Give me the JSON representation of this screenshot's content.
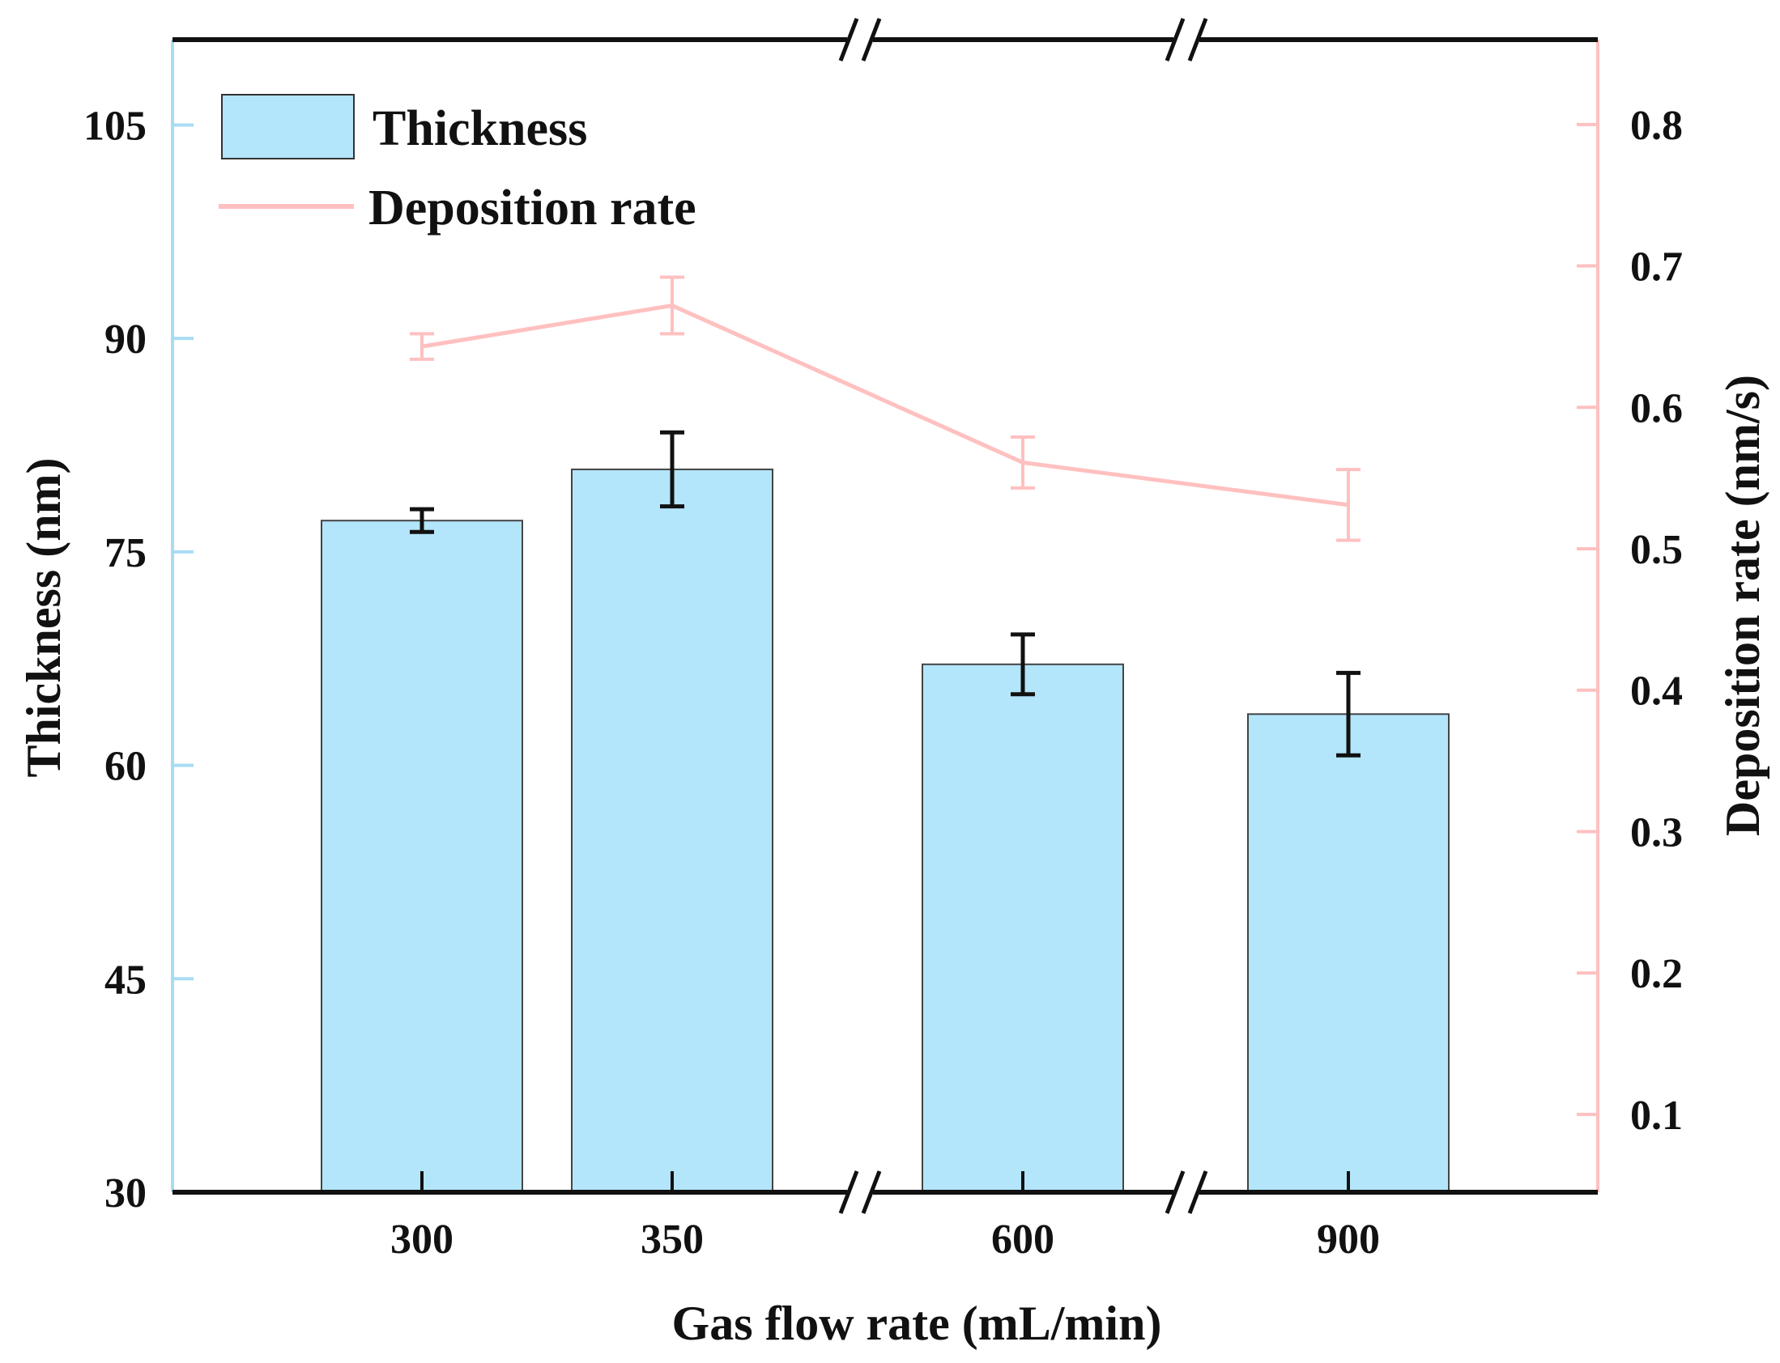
{
  "chart_data": {
    "type": "bar+line",
    "title": "",
    "xlabel": "Gas flow rate (mL/min)",
    "ylabel_left": "Thickness (nm)",
    "ylabel_right": "Deposition rate (nm/s)",
    "categories": [
      "300",
      "350",
      "600",
      "900"
    ],
    "axis_breaks": [
      "between 350 and 600",
      "between 600 and 900"
    ],
    "y_left": {
      "min": 30,
      "max": 111,
      "ticks": [
        30,
        45,
        60,
        75,
        90,
        105
      ]
    },
    "y_right": {
      "min": 0.045,
      "max": 0.86,
      "ticks": [
        "0.1",
        "0.2",
        "0.3",
        "0.4",
        "0.5",
        "0.6",
        "0.7",
        "0.8"
      ]
    },
    "series": [
      {
        "name": "Thickness",
        "kind": "bar",
        "axis": "left",
        "color": "#b3e5fb",
        "values": [
          77.2,
          80.8,
          67.1,
          63.6
        ],
        "errors": [
          0.8,
          2.6,
          2.1,
          2.9
        ]
      },
      {
        "name": "Deposition rate",
        "kind": "line",
        "axis": "right",
        "color": "#ffc0c0",
        "values": [
          0.643,
          0.672,
          0.561,
          0.531
        ],
        "errors": [
          0.009,
          0.02,
          0.018,
          0.025
        ]
      }
    ],
    "legend": {
      "position": "top-left",
      "entries": [
        "Thickness",
        "Deposition rate"
      ]
    },
    "colors": {
      "left_axis": "#a8dcf3",
      "right_axis": "#ffc0c0",
      "frame": "#111111",
      "error_bar_bar": "#111111"
    }
  }
}
